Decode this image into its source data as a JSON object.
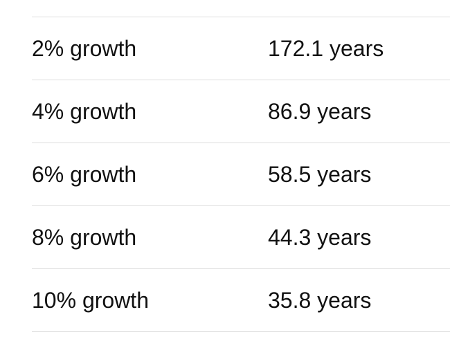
{
  "table": {
    "rows": [
      {
        "rate": "2% growth",
        "years": "172.1 years"
      },
      {
        "rate": "4% growth",
        "years": "86.9 years"
      },
      {
        "rate": "6% growth",
        "years": "58.5 years"
      },
      {
        "rate": "8% growth",
        "years": "44.3 years"
      },
      {
        "rate": "10% growth",
        "years": "35.8 years"
      }
    ]
  }
}
